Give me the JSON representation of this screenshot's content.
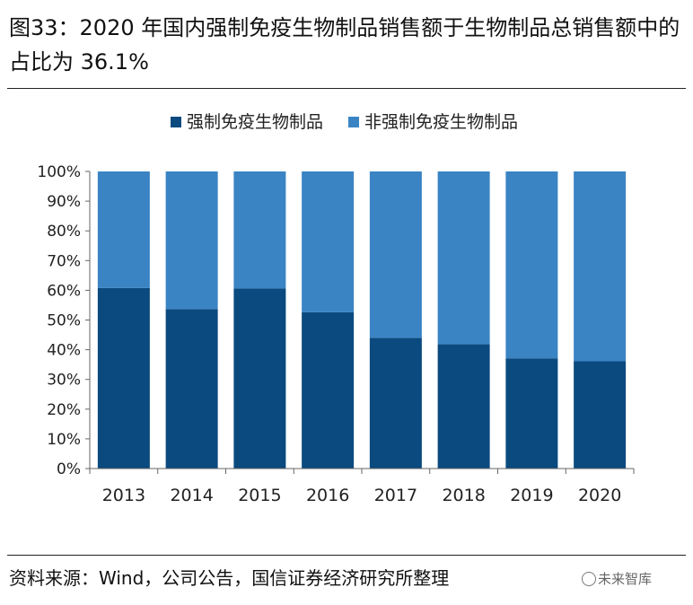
{
  "figure": {
    "title": "图33：2020 年国内强制免疫生物制品销售额于生物制品总销售额中的占比为 36.1%",
    "source": "资料来源：Wind，公司公告，国信证券经济研究所整理",
    "watermark": "未来智库"
  },
  "chart_data": {
    "type": "bar",
    "stacked": true,
    "categories": [
      "2013",
      "2014",
      "2015",
      "2016",
      "2017",
      "2018",
      "2019",
      "2020"
    ],
    "series": [
      {
        "name": "强制免疫生物制品",
        "color": "#0a4a7f",
        "values": [
          60.8,
          53.7,
          60.6,
          52.6,
          44.0,
          41.9,
          37.1,
          36.1
        ]
      },
      {
        "name": "非强制免疫生物制品",
        "color": "#3a84c4",
        "values": [
          39.2,
          46.3,
          39.4,
          47.4,
          56.0,
          58.1,
          62.9,
          63.9
        ]
      }
    ],
    "ylim": [
      0,
      100
    ],
    "yticks": [
      "0%",
      "10%",
      "20%",
      "30%",
      "40%",
      "50%",
      "60%",
      "70%",
      "80%",
      "90%",
      "100%"
    ],
    "xlabel": "",
    "ylabel": "",
    "legend": "top-center",
    "grid": false
  }
}
